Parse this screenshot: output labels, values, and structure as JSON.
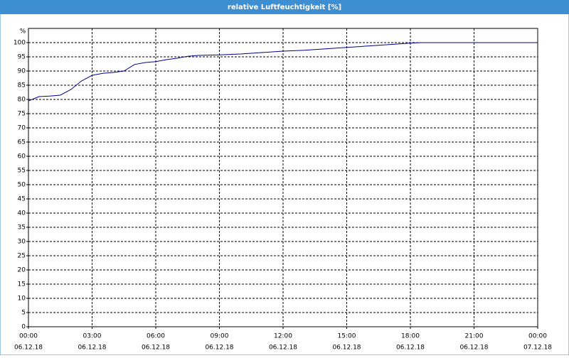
{
  "chart_data": {
    "type": "line",
    "title": "relative Luftfeuchtigkeit [%]",
    "y_label": "%",
    "x": [
      0,
      0.5,
      1,
      1.5,
      2,
      2.5,
      3,
      3.5,
      4,
      4.5,
      5,
      5.5,
      6,
      6.5,
      7,
      7.5,
      8,
      9,
      10,
      11,
      12,
      13,
      14,
      15,
      16,
      17,
      18,
      18.5,
      19,
      20,
      21,
      22,
      23,
      24
    ],
    "series": [
      {
        "name": "relative Luftfeuchtigkeit",
        "color": "#00008b",
        "values": [
          79.5,
          81,
          81.2,
          81.5,
          83.5,
          86.5,
          88.5,
          89.2,
          89.5,
          90,
          92.3,
          93,
          93.3,
          94,
          94.5,
          95.2,
          95.5,
          95.7,
          96,
          96.5,
          97,
          97.3,
          97.8,
          98.3,
          98.8,
          99.3,
          99.8,
          100,
          100,
          100,
          100,
          100,
          100,
          100
        ]
      }
    ],
    "xlim": [
      0,
      24
    ],
    "xticks": [
      {
        "value": 0,
        "label": [
          "00:00",
          "06.12.18"
        ]
      },
      {
        "value": 3,
        "label": [
          "03:00",
          "06.12.18"
        ]
      },
      {
        "value": 6,
        "label": [
          "06:00",
          "06.12.18"
        ]
      },
      {
        "value": 9,
        "label": [
          "09:00",
          "06.12.18"
        ]
      },
      {
        "value": 12,
        "label": [
          "12:00",
          "06.12.18"
        ]
      },
      {
        "value": 15,
        "label": [
          "15:00",
          "06.12.18"
        ]
      },
      {
        "value": 18,
        "label": [
          "18:00",
          "06.12.18"
        ]
      },
      {
        "value": 21,
        "label": [
          "21:00",
          "06.12.18"
        ]
      },
      {
        "value": 24,
        "label": [
          "00:00",
          "07.12.18"
        ]
      }
    ],
    "ylim": [
      0,
      105
    ],
    "yticks": [
      0,
      5,
      10,
      15,
      20,
      25,
      30,
      35,
      40,
      45,
      50,
      55,
      60,
      65,
      70,
      75,
      80,
      85,
      90,
      95,
      100
    ],
    "grid": true
  }
}
